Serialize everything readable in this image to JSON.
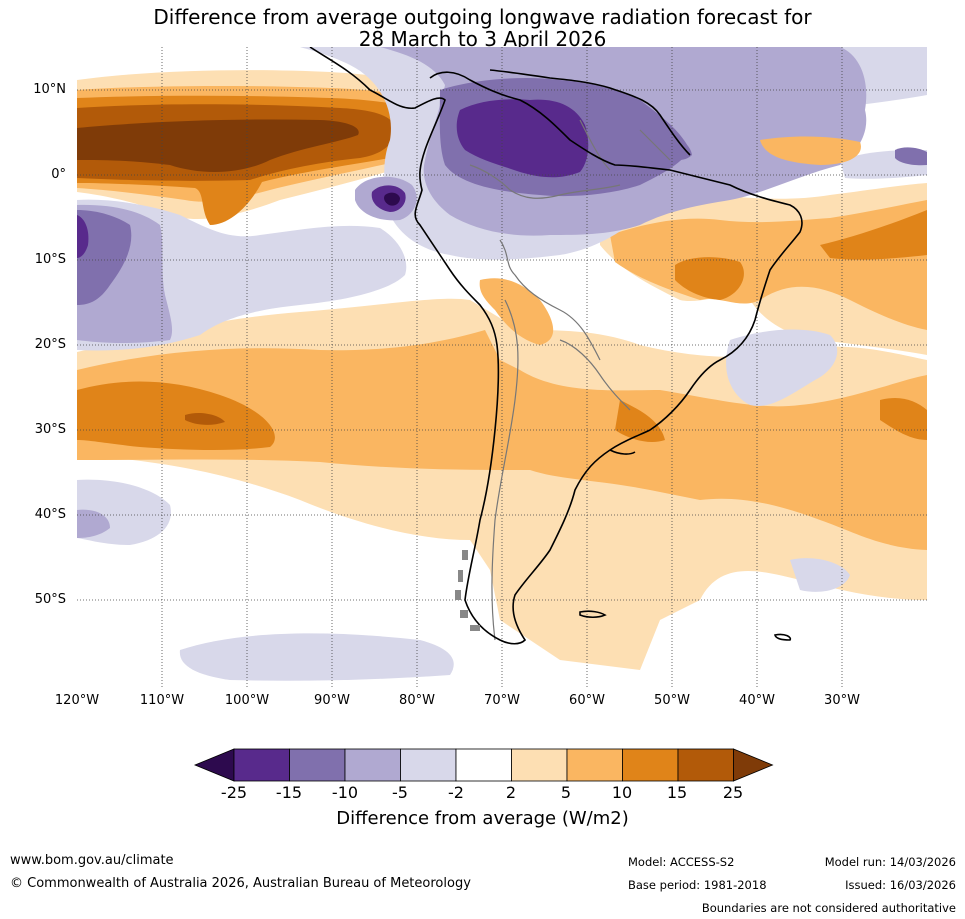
{
  "title": {
    "line1": "Difference from average outgoing longwave radiation forecast for",
    "line2": "28 March to 3 April 2026"
  },
  "lat_labels": [
    "10°N",
    "0°",
    "10°S",
    "20°S",
    "30°S",
    "40°S",
    "50°S"
  ],
  "lon_labels": [
    "120°W",
    "110°W",
    "100°W",
    "90°W",
    "80°W",
    "70°W",
    "60°W",
    "50°W",
    "40°W",
    "30°W"
  ],
  "colorbar": {
    "ticks": [
      "-25",
      "-15",
      "-10",
      "-5",
      "-2",
      "2",
      "5",
      "10",
      "15",
      "25"
    ],
    "colors": [
      "#2d0a4e",
      "#582a8c",
      "#8070ad",
      "#b0a9d1",
      "#d8d8ea",
      "#ffffff",
      "#fddfb3",
      "#fab661",
      "#e08419",
      "#b25a09",
      "#7f3b08"
    ],
    "label": "Difference from average (W/m2)"
  },
  "footer": {
    "website": "www.bom.gov.au/climate",
    "copyright": "© Commonwealth of Australia 2026, Australian Bureau of Meteorology",
    "model": "Model: ACCESS-S2",
    "base_period": "Base period: 1981-2018",
    "model_run": "Model run: 14/03/2026",
    "issued": "Issued: 16/03/2026",
    "disclaimer": "Boundaries are not considered authoritative"
  }
}
